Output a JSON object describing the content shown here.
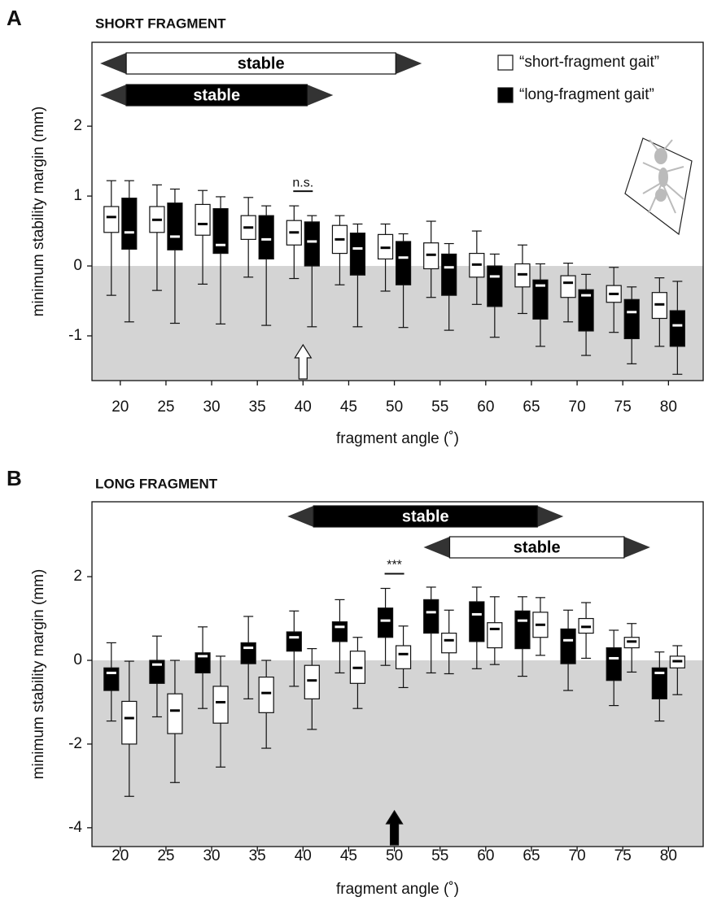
{
  "chart_data": [
    {
      "type": "box",
      "panel": "A",
      "title": "SHORT FRAGMENT",
      "xlabel": "fragment angle (˚)",
      "ylabel": "minimum stability margin (mm)",
      "x": [
        20,
        25,
        30,
        35,
        40,
        45,
        50,
        55,
        60,
        65,
        70,
        75,
        80
      ],
      "xlim": [
        16.9,
        83.8
      ],
      "xticks": [
        20,
        25,
        30,
        35,
        40,
        45,
        50,
        55,
        60,
        65,
        70,
        75,
        80
      ],
      "ylim": [
        -1.64,
        3.2
      ],
      "yticks": [
        -1,
        0,
        1,
        2
      ],
      "shade_below": 0,
      "legend": true,
      "series": [
        {
          "name": "“short-fragment gait”",
          "color": "#ffffff",
          "whishi": [
            1.22,
            1.16,
            1.08,
            0.98,
            0.86,
            0.72,
            0.6,
            0.64,
            0.5,
            0.3,
            0.04,
            -0.02,
            -0.17
          ],
          "q3": [
            0.85,
            0.85,
            0.88,
            0.72,
            0.65,
            0.58,
            0.45,
            0.33,
            0.18,
            0.03,
            -0.14,
            -0.28,
            -0.38
          ],
          "median": [
            0.7,
            0.66,
            0.6,
            0.55,
            0.48,
            0.38,
            0.26,
            0.16,
            0.02,
            -0.12,
            -0.24,
            -0.4,
            -0.55
          ],
          "q1": [
            0.48,
            0.48,
            0.44,
            0.38,
            0.3,
            0.18,
            0.1,
            -0.04,
            -0.16,
            -0.3,
            -0.45,
            -0.52,
            -0.75
          ],
          "whislo": [
            -0.42,
            -0.35,
            -0.26,
            -0.16,
            -0.18,
            -0.27,
            -0.36,
            -0.45,
            -0.55,
            -0.68,
            -0.8,
            -0.95,
            -1.15
          ]
        },
        {
          "name": "“long-fragment gait”",
          "color": "#000000",
          "whishi": [
            1.22,
            1.1,
            0.99,
            0.86,
            0.72,
            0.6,
            0.46,
            0.32,
            0.17,
            0.03,
            -0.12,
            -0.3,
            -0.22
          ],
          "q3": [
            0.97,
            0.9,
            0.82,
            0.72,
            0.63,
            0.47,
            0.35,
            0.17,
            0.0,
            -0.2,
            -0.34,
            -0.48,
            -0.64
          ],
          "median": [
            0.48,
            0.42,
            0.3,
            0.38,
            0.35,
            0.25,
            0.12,
            -0.02,
            -0.15,
            -0.28,
            -0.42,
            -0.66,
            -0.85
          ],
          "q1": [
            0.24,
            0.23,
            0.18,
            0.1,
            0.0,
            -0.13,
            -0.27,
            -0.42,
            -0.58,
            -0.76,
            -0.93,
            -1.04,
            -1.15
          ],
          "whislo": [
            -0.8,
            -0.82,
            -0.83,
            -0.85,
            -0.87,
            -0.87,
            -0.88,
            -0.92,
            -1.02,
            -1.15,
            -1.28,
            -1.4,
            -1.55
          ]
        }
      ],
      "stable_ranges": [
        {
          "label": "stable",
          "color": "#ffffff",
          "range": [
            17.8,
            53.0
          ]
        },
        {
          "label": "stable",
          "color": "#000000",
          "range": [
            17.8,
            43.3
          ]
        }
      ],
      "annotations": [
        {
          "text": "n.s.",
          "x": 40
        }
      ],
      "arrows": [
        {
          "x": 40,
          "color": "#ffffff"
        }
      ]
    },
    {
      "type": "box",
      "panel": "B",
      "title": "LONG FRAGMENT",
      "xlabel": "fragment angle (˚)",
      "ylabel": "minimum stability margin (mm)",
      "x": [
        20,
        25,
        30,
        35,
        40,
        45,
        50,
        55,
        60,
        65,
        70,
        75,
        80
      ],
      "xlim": [
        16.9,
        83.8
      ],
      "xticks": [
        20,
        25,
        30,
        35,
        40,
        45,
        50,
        55,
        60,
        65,
        70,
        75,
        80
      ],
      "ylim": [
        -4.45,
        3.79
      ],
      "yticks": [
        -4,
        -2,
        0,
        2
      ],
      "shade_below": 0,
      "legend": false,
      "series": [
        {
          "color": "#000000",
          "whishi": [
            0.42,
            0.58,
            0.8,
            1.05,
            1.18,
            1.45,
            1.72,
            1.75,
            1.75,
            1.52,
            1.2,
            0.72,
            0.2
          ],
          "q3": [
            -0.18,
            0.0,
            0.18,
            0.42,
            0.68,
            0.92,
            1.25,
            1.45,
            1.4,
            1.18,
            0.75,
            0.3,
            -0.18
          ],
          "median": [
            -0.3,
            -0.1,
            0.1,
            0.3,
            0.55,
            0.8,
            0.95,
            1.15,
            1.1,
            0.95,
            0.48,
            0.05,
            -0.3
          ],
          "q1": [
            -0.72,
            -0.55,
            -0.3,
            -0.08,
            0.22,
            0.45,
            0.55,
            0.65,
            0.45,
            0.28,
            -0.08,
            -0.48,
            -0.92
          ],
          "whislo": [
            -1.45,
            -1.35,
            -1.15,
            -0.92,
            -0.62,
            -0.3,
            -0.12,
            -0.3,
            -0.2,
            -0.38,
            -0.72,
            -1.08,
            -1.45
          ]
        },
        {
          "color": "#ffffff",
          "whishi": [
            -0.02,
            0.0,
            0.1,
            0.0,
            0.28,
            0.55,
            0.82,
            1.2,
            1.52,
            1.5,
            1.38,
            0.88,
            0.35
          ],
          "q3": [
            -0.98,
            -0.8,
            -0.62,
            -0.4,
            -0.12,
            0.22,
            0.35,
            0.65,
            0.9,
            1.15,
            1.0,
            0.55,
            0.1
          ],
          "median": [
            -1.38,
            -1.2,
            -1.0,
            -0.78,
            -0.48,
            -0.18,
            0.15,
            0.48,
            0.75,
            0.85,
            0.8,
            0.45,
            -0.02
          ],
          "q1": [
            -2.0,
            -1.75,
            -1.5,
            -1.25,
            -0.92,
            -0.55,
            -0.2,
            0.18,
            0.3,
            0.55,
            0.65,
            0.3,
            -0.18
          ],
          "whislo": [
            -3.25,
            -2.92,
            -2.55,
            -2.1,
            -1.65,
            -1.15,
            -0.65,
            -0.32,
            -0.1,
            0.12,
            0.05,
            -0.28,
            -0.82
          ]
        }
      ],
      "stable_ranges": [
        {
          "label": "stable",
          "color": "#000000",
          "range": [
            38.3,
            68.5
          ]
        },
        {
          "label": "stable",
          "color": "#ffffff",
          "range": [
            53.2,
            78.0
          ]
        }
      ],
      "annotations": [
        {
          "text": "***",
          "x": 50
        }
      ],
      "arrows": [
        {
          "x": 50,
          "color": "#000000"
        }
      ]
    }
  ]
}
